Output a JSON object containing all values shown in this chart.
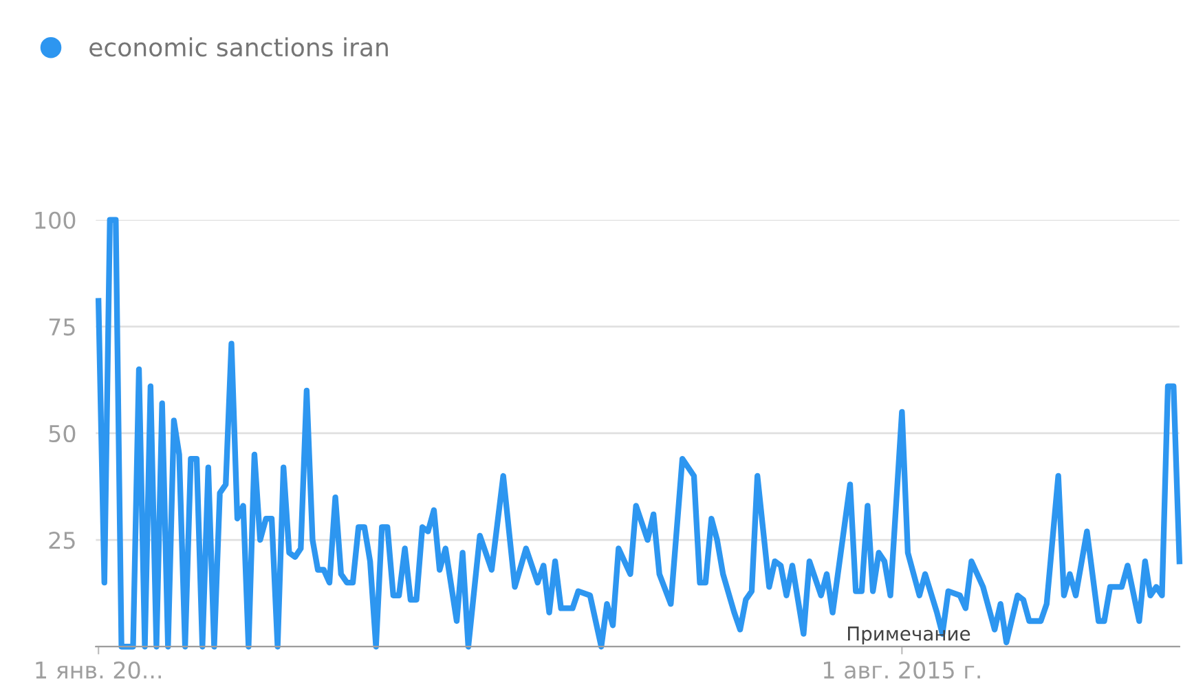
{
  "chart_data": {
    "type": "line",
    "x": [
      "2004-01",
      "2004-02",
      "2004-03",
      "2004-04",
      "2004-05",
      "2004-07",
      "2004-08",
      "2004-09",
      "2004-10",
      "2004-11",
      "2004-12",
      "2005-01",
      "2005-02",
      "2005-03",
      "2005-04",
      "2005-05",
      "2005-06",
      "2005-07",
      "2005-08",
      "2005-09",
      "2005-10",
      "2005-11",
      "2005-12",
      "2006-01",
      "2006-02",
      "2006-03",
      "2006-04",
      "2006-05",
      "2006-06",
      "2006-07",
      "2006-08",
      "2006-09",
      "2006-10",
      "2006-11",
      "2006-12",
      "2007-01",
      "2007-02",
      "2007-03",
      "2007-04",
      "2007-05",
      "2007-06",
      "2007-07",
      "2007-08",
      "2007-09",
      "2007-10",
      "2007-11",
      "2007-12",
      "2008-01",
      "2008-02",
      "2008-03",
      "2008-04",
      "2008-05",
      "2008-06",
      "2008-07",
      "2008-08",
      "2008-09",
      "2008-10",
      "2008-11",
      "2008-12",
      "2009-01",
      "2009-03",
      "2009-04",
      "2009-05",
      "2009-07",
      "2009-09",
      "2009-11",
      "2010-01",
      "2010-03",
      "2010-05",
      "2010-06",
      "2010-07",
      "2010-08",
      "2010-09",
      "2010-11",
      "2010-12",
      "2011-02",
      "2011-04",
      "2011-05",
      "2011-06",
      "2011-07",
      "2011-09",
      "2011-10",
      "2011-12",
      "2012-01",
      "2012-02",
      "2012-04",
      "2012-06",
      "2012-08",
      "2012-09",
      "2012-10",
      "2012-11",
      "2012-12",
      "2013-01",
      "2013-03",
      "2013-04",
      "2013-05",
      "2013-06",
      "2013-07",
      "2013-09",
      "2013-10",
      "2013-11",
      "2013-12",
      "2014-01",
      "2014-03",
      "2014-04",
      "2014-06",
      "2014-07",
      "2014-08",
      "2014-11",
      "2014-12",
      "2015-01",
      "2015-02",
      "2015-03",
      "2015-04",
      "2015-05",
      "2015-06",
      "2015-08",
      "2015-09",
      "2015-11",
      "2015-12",
      "2016-02",
      "2016-03",
      "2016-04",
      "2016-06",
      "2016-07",
      "2016-08",
      "2016-10",
      "2016-12",
      "2017-01",
      "2017-02",
      "2017-04",
      "2017-05",
      "2017-06",
      "2017-08",
      "2017-09",
      "2017-11",
      "2017-12",
      "2018-01",
      "2018-02",
      "2018-04",
      "2018-06",
      "2018-07",
      "2018-08",
      "2018-10",
      "2018-11",
      "2019-01",
      "2019-02",
      "2019-03",
      "2019-04",
      "2019-05",
      "2019-06",
      "2019-07",
      "2019-08"
    ],
    "series": [
      {
        "name": "economic sanctions iran",
        "color": "#2d96f0",
        "values": [
          81,
          15,
          100,
          100,
          0,
          0,
          65,
          0,
          61,
          0,
          57,
          0,
          53,
          45,
          0,
          44,
          44,
          0,
          42,
          0,
          36,
          38,
          71,
          30,
          33,
          0,
          45,
          25,
          30,
          30,
          0,
          42,
          22,
          21,
          23,
          60,
          25,
          18,
          18,
          15,
          35,
          17,
          15,
          15,
          28,
          28,
          20,
          0,
          28,
          28,
          12,
          12,
          23,
          11,
          11,
          28,
          27,
          32,
          18,
          23,
          6,
          22,
          0,
          26,
          18,
          40,
          14,
          23,
          15,
          19,
          8,
          20,
          9,
          9,
          13,
          12,
          0,
          10,
          5,
          23,
          17,
          33,
          25,
          31,
          17,
          10,
          44,
          40,
          15,
          15,
          30,
          25,
          17,
          8,
          4,
          11,
          13,
          40,
          14,
          20,
          19,
          12,
          19,
          3,
          20,
          12,
          17,
          8,
          38,
          13,
          13,
          33,
          13,
          22,
          20,
          12,
          55,
          22,
          12,
          17,
          8,
          3,
          13,
          12,
          9,
          20,
          14,
          4,
          10,
          1,
          12,
          11,
          6,
          6,
          10,
          40,
          12,
          17,
          12,
          27,
          6,
          6,
          14,
          14,
          19,
          6,
          20,
          12,
          14,
          12,
          61,
          61,
          20
        ]
      }
    ],
    "xlim": [
      "2003-12-18",
      "2019-08-01"
    ],
    "xticks": [
      {
        "value": "2004-01-01",
        "label": "1 янв. 20..."
      },
      {
        "value": "2015-08-01",
        "label": "1 авг. 2015 г."
      }
    ],
    "ylim": [
      0,
      100
    ],
    "yticks": [
      {
        "value": 0,
        "label": null
      },
      25,
      50,
      75,
      100
    ],
    "grid": "y",
    "legend": "top left",
    "annotations": [
      "Примечание"
    ]
  }
}
